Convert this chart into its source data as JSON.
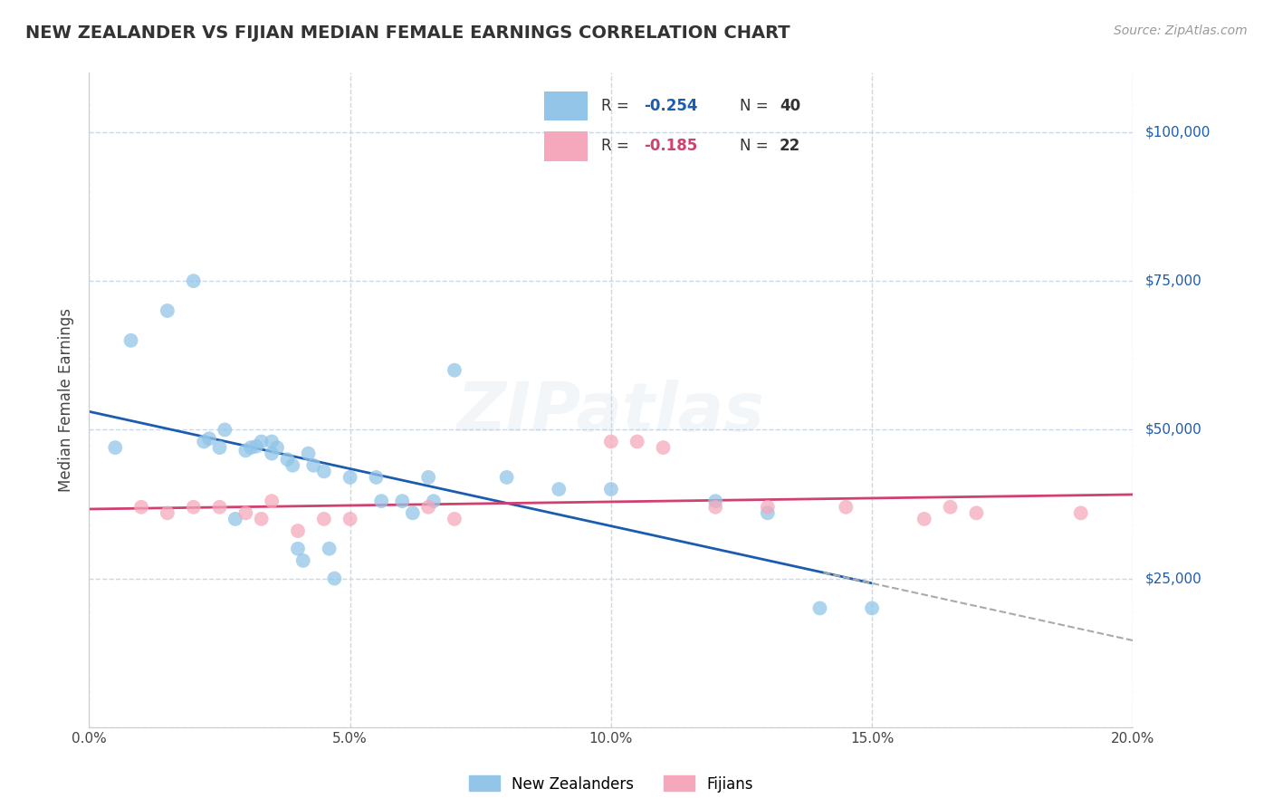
{
  "title": "NEW ZEALANDER VS FIJIAN MEDIAN FEMALE EARNINGS CORRELATION CHART",
  "source": "Source: ZipAtlas.com",
  "ylabel": "Median Female Earnings",
  "xlim": [
    0.0,
    0.2
  ],
  "ylim": [
    0,
    110000
  ],
  "yticks": [
    0,
    25000,
    50000,
    75000,
    100000
  ],
  "xticks": [
    0.0,
    0.05,
    0.1,
    0.15,
    0.2
  ],
  "xtick_labels": [
    "0.0%",
    "5.0%",
    "10.0%",
    "15.0%",
    "20.0%"
  ],
  "right_axis_labels": {
    "100000": "$100,000",
    "75000": "$75,000",
    "50000": "$50,000",
    "25000": "$25,000"
  },
  "legend_labels": [
    "New Zealanders",
    "Fijians"
  ],
  "legend_r_nz": "R = -0.254",
  "legend_n_nz": "N = 40",
  "legend_r_fij": "R = -0.185",
  "legend_n_fij": "N = 22",
  "nz_color": "#92c5e8",
  "fij_color": "#f5a8bc",
  "nz_line_color": "#1a5cb0",
  "fij_line_color": "#d04070",
  "dash_color": "#aaaaaa",
  "background_color": "#ffffff",
  "grid_color": "#c8d8e8",
  "right_label_color": "#1a5cb0",
  "watermark_color": "#b8cfe0",
  "nz_scatter_x": [
    0.005,
    0.008,
    0.015,
    0.02,
    0.022,
    0.023,
    0.025,
    0.026,
    0.028,
    0.03,
    0.031,
    0.032,
    0.033,
    0.035,
    0.035,
    0.036,
    0.038,
    0.039,
    0.04,
    0.041,
    0.042,
    0.043,
    0.045,
    0.046,
    0.047,
    0.05,
    0.055,
    0.056,
    0.06,
    0.062,
    0.065,
    0.066,
    0.07,
    0.08,
    0.09,
    0.1,
    0.12,
    0.13,
    0.14,
    0.15
  ],
  "nz_scatter_y": [
    47000,
    65000,
    70000,
    75000,
    48000,
    48500,
    47000,
    50000,
    35000,
    46500,
    47000,
    47200,
    48000,
    46000,
    48000,
    47000,
    45000,
    44000,
    30000,
    28000,
    46000,
    44000,
    43000,
    30000,
    25000,
    42000,
    42000,
    38000,
    38000,
    36000,
    42000,
    38000,
    60000,
    42000,
    40000,
    40000,
    38000,
    36000,
    20000,
    20000
  ],
  "fij_scatter_x": [
    0.01,
    0.015,
    0.02,
    0.025,
    0.03,
    0.033,
    0.035,
    0.04,
    0.045,
    0.05,
    0.065,
    0.07,
    0.1,
    0.105,
    0.11,
    0.12,
    0.13,
    0.145,
    0.16,
    0.165,
    0.17,
    0.19
  ],
  "fij_scatter_y": [
    37000,
    36000,
    37000,
    37000,
    36000,
    35000,
    38000,
    33000,
    35000,
    35000,
    37000,
    35000,
    48000,
    48000,
    47000,
    37000,
    37000,
    37000,
    35000,
    37000,
    36000,
    36000
  ]
}
